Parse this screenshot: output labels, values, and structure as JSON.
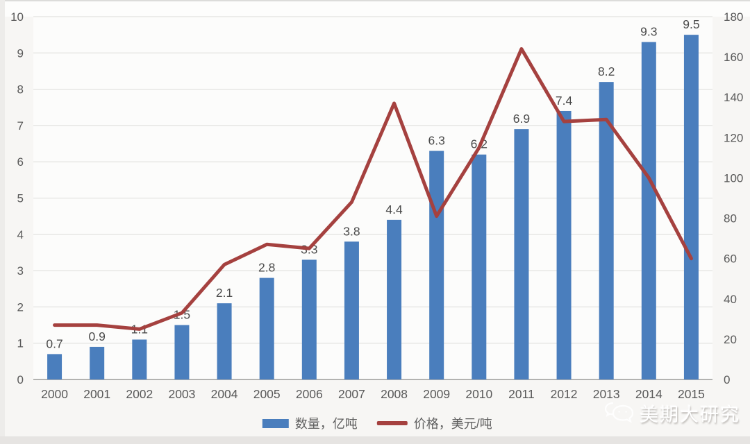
{
  "chart_data": {
    "type": "bar",
    "subtype": "combo-bar-line",
    "categories": [
      "2000",
      "2001",
      "2002",
      "2003",
      "2004",
      "2005",
      "2006",
      "2007",
      "2008",
      "2009",
      "2010",
      "2011",
      "2012",
      "2013",
      "2014",
      "2015"
    ],
    "series": [
      {
        "name": "数量，亿吨",
        "type": "bar",
        "axis": "left",
        "color": "#4a7ebd",
        "values": [
          0.7,
          0.9,
          1.1,
          1.5,
          2.1,
          2.8,
          3.3,
          3.8,
          4.4,
          6.3,
          6.2,
          6.9,
          7.4,
          8.2,
          9.3,
          9.5
        ],
        "data_labels": [
          "0.7",
          "0.9",
          "1.1",
          "1.5",
          "2.1",
          "2.8",
          "3.3",
          "3.8",
          "4.4",
          "6.3",
          "6.2",
          "6.9",
          "7.4",
          "8.2",
          "9.3",
          "9.5"
        ]
      },
      {
        "name": "价格，美元/吨",
        "type": "line",
        "axis": "right",
        "color": "#a5413f",
        "values": [
          27,
          27,
          25,
          33,
          57,
          67,
          65,
          88,
          137,
          81,
          115,
          164,
          128,
          129,
          100,
          60
        ]
      }
    ],
    "title": "",
    "xlabel": "",
    "ylabel": "",
    "left_axis": {
      "min": 0,
      "max": 10,
      "step": 1,
      "ticks": [
        0,
        1,
        2,
        3,
        4,
        5,
        6,
        7,
        8,
        9,
        10
      ]
    },
    "right_axis": {
      "min": 0,
      "max": 180,
      "step": 20,
      "ticks": [
        0,
        20,
        40,
        60,
        80,
        100,
        120,
        140,
        160,
        180
      ]
    },
    "grid": true,
    "legend_position": "bottom",
    "colors": {
      "gridline": "#dbdbd9",
      "axis_line": "#9c9c9a",
      "tick_text": "#595959",
      "bar_label_text": "#4a4a4a"
    }
  },
  "watermark": {
    "text": "美期大研究",
    "icon": "wechat-icon"
  }
}
